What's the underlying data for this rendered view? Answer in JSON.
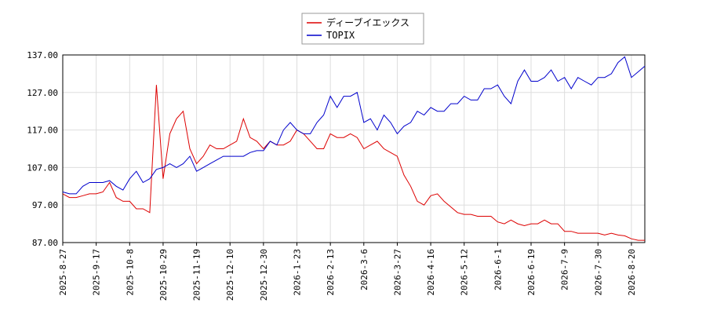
{
  "chart_data": {
    "type": "line",
    "categories": [
      "2025-8-27",
      null,
      null,
      null,
      null,
      "2025-9-17",
      null,
      null,
      null,
      null,
      "2025-10-8",
      null,
      null,
      null,
      null,
      "2025-10-29",
      null,
      null,
      null,
      null,
      "2025-11-19",
      null,
      null,
      null,
      null,
      "2025-12-10",
      null,
      null,
      null,
      null,
      "2025-12-30",
      null,
      null,
      null,
      null,
      "2026-1-23",
      null,
      null,
      null,
      null,
      "2026-2-13",
      null,
      null,
      null,
      null,
      "2026-3-6",
      null,
      null,
      null,
      null,
      "2026-3-27",
      null,
      null,
      null,
      null,
      "2026-4-16",
      null,
      null,
      null,
      null,
      "2026-5-12",
      null,
      null,
      null,
      null,
      "2026-6-1",
      null,
      null,
      null,
      null,
      "2026-6-19",
      null,
      null,
      null,
      null,
      "2026-7-9",
      null,
      null,
      null,
      null,
      "2026-7-30",
      null,
      null,
      null,
      null,
      "2026-8-20",
      null,
      null
    ],
    "series": [
      {
        "name": "ディーブイエックス",
        "color": "#dd0000",
        "values": [
          100,
          99,
          99,
          99.5,
          100,
          100,
          100.5,
          103,
          99,
          98,
          98,
          96,
          96,
          95,
          129,
          104,
          116,
          120,
          122,
          112,
          108,
          110,
          113,
          112,
          112,
          113,
          114,
          120,
          115,
          114,
          112,
          114,
          113,
          113,
          114,
          117,
          116,
          114,
          112,
          112,
          116,
          115,
          115,
          116,
          115,
          112,
          113,
          114,
          112,
          111,
          110,
          105,
          102,
          98,
          97,
          99.5,
          100,
          98,
          96.5,
          95,
          94.5,
          94.5,
          94,
          94,
          94,
          92.5,
          92,
          93,
          92,
          91.5,
          92,
          92,
          93,
          92,
          92,
          90,
          90,
          89.5,
          89.5,
          89.5,
          89.5,
          89,
          89.5,
          89,
          88.8,
          88,
          87.6,
          87.6
        ]
      },
      {
        "name": "TOPIX",
        "color": "#0000cc",
        "values": [
          100.5,
          100,
          100,
          102,
          103,
          103,
          103,
          103.5,
          102,
          101,
          104,
          106,
          103,
          104,
          106.5,
          107,
          108,
          107,
          108,
          110,
          106,
          107,
          108,
          109,
          110,
          110,
          110,
          110,
          111,
          111.5,
          111.5,
          114,
          113,
          117,
          119,
          117,
          116,
          116,
          119,
          121,
          126,
          123,
          126,
          126,
          127,
          119,
          120,
          117,
          121,
          119,
          116,
          118,
          119,
          122,
          121,
          123,
          122,
          122,
          124,
          124,
          126,
          125,
          125,
          128,
          128,
          129,
          126,
          124,
          130,
          133,
          130,
          130,
          131,
          133,
          130,
          131,
          128,
          131,
          130,
          129,
          131,
          131,
          132,
          135,
          136.5,
          131,
          132.5,
          134
        ]
      }
    ],
    "ylim": [
      87,
      137
    ],
    "yticks": [
      {
        "value": 87,
        "label": "87.00"
      },
      {
        "value": 97,
        "label": "97.00"
      },
      {
        "value": 107,
        "label": "107.00"
      },
      {
        "value": 117,
        "label": "117.00"
      },
      {
        "value": 127,
        "label": "127.00"
      },
      {
        "value": 137,
        "label": "137.00"
      }
    ],
    "grid": true,
    "legend": "top"
  }
}
